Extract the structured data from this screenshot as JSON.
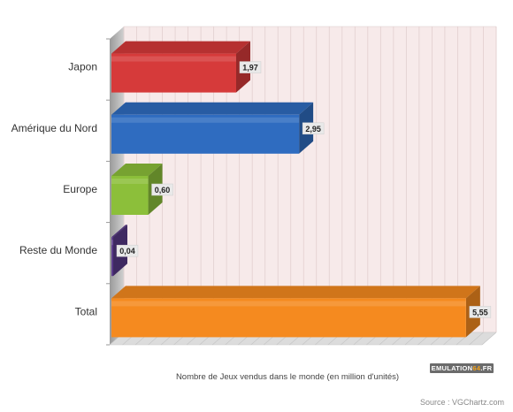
{
  "chart_data": {
    "type": "bar",
    "orientation": "horizontal",
    "categories": [
      "Japon",
      "Amérique du Nord",
      "Europe",
      "Reste du Monde",
      "Total"
    ],
    "values": [
      1.97,
      2.95,
      0.6,
      0.04,
      5.55
    ],
    "value_labels": [
      "1,97",
      "2,95",
      "0,60",
      "0,04",
      "5,55"
    ],
    "colors": [
      "#d63a3a",
      "#2f6cc0",
      "#8cbf3a",
      "#5a3a8a",
      "#f58a1f"
    ],
    "xlabel": "Nombre de Jeux vendus dans le monde (en million d'unités)",
    "xlim": [
      0,
      5.8
    ],
    "grid": true,
    "legend": "none"
  },
  "footer": {
    "source": "Source : VGChartz.com",
    "logo_main": "EMULATION",
    "logo_accent": "64",
    "logo_suffix": ".FR"
  }
}
